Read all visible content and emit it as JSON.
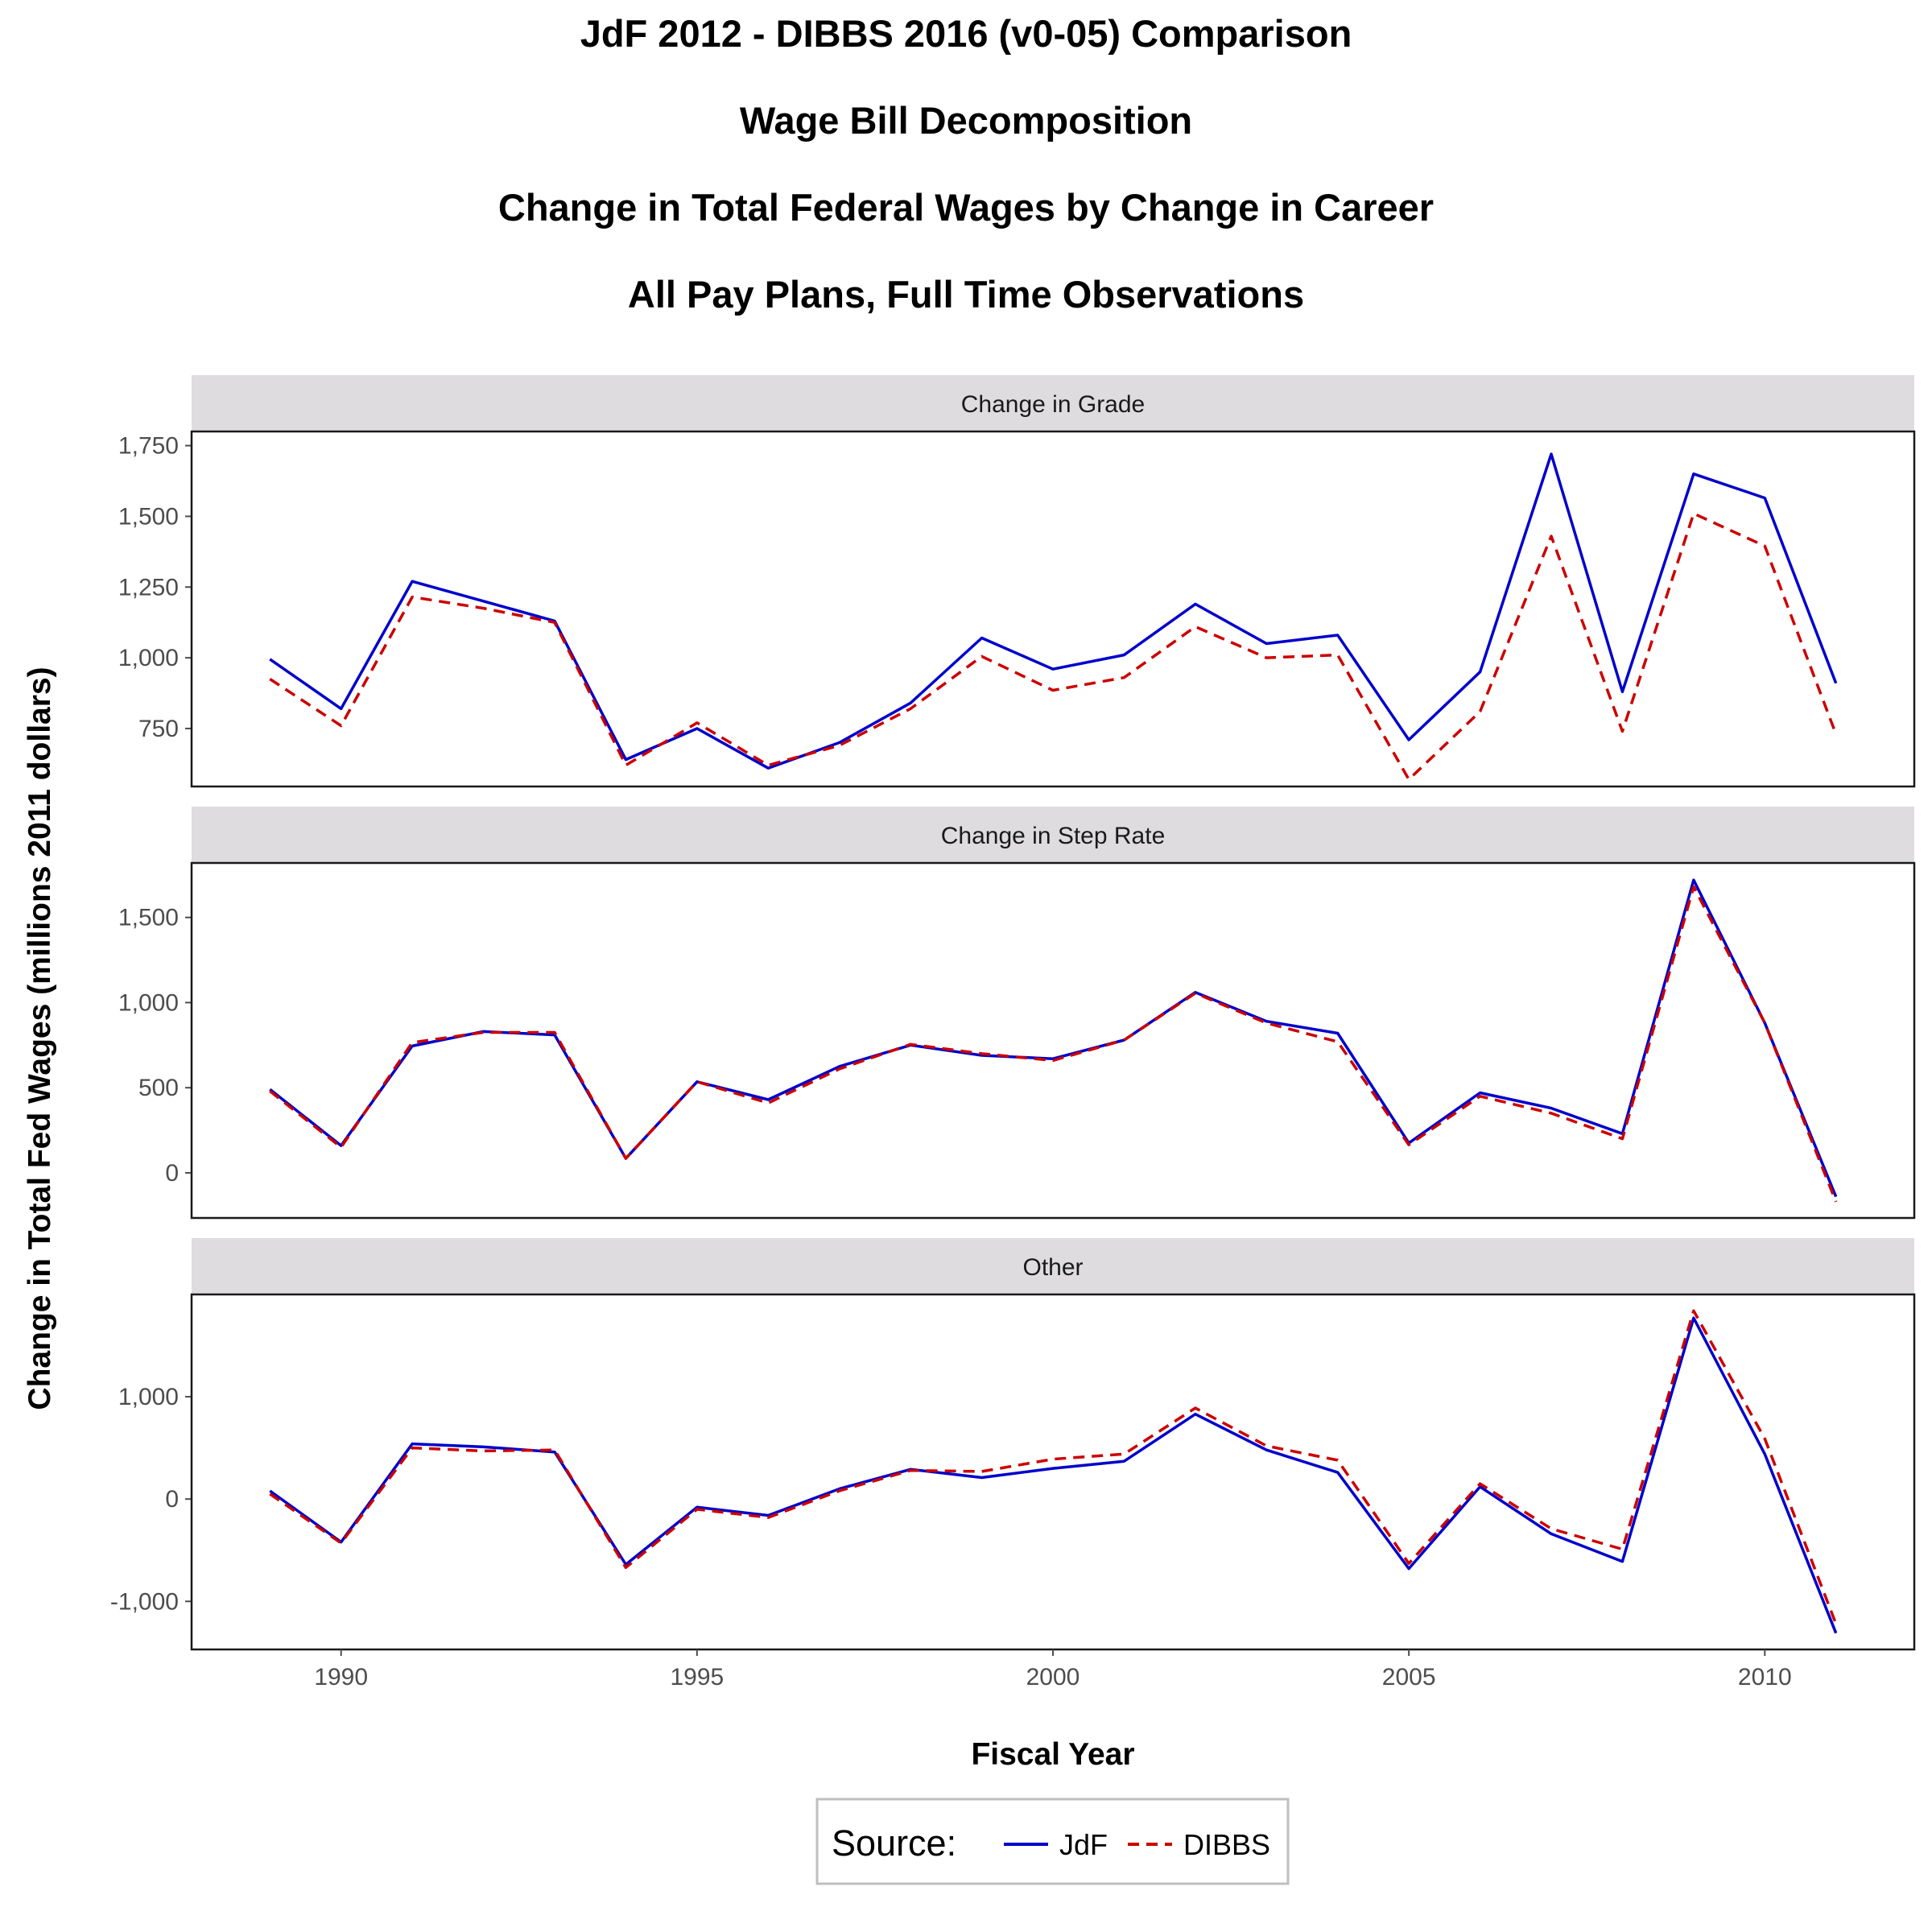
{
  "titles": [
    "JdF 2012 - DIBBS 2016 (v0-05) Comparison",
    "Wage Bill Decomposition",
    "Change in Total Federal Wages by Change in Career",
    "All Pay Plans, Full Time Observations"
  ],
  "colors": {
    "jdf": "#0000cc",
    "dibbs": "#cc0000",
    "strip": "#dedcdf",
    "tick": "#4d4d4d"
  },
  "chart_data": {
    "type": "line",
    "title": "JdF 2012 - DIBBS 2016 (v0-05) Comparison\nWage Bill Decomposition\nChange in Total Federal Wages by Change in Career\nAll Pay Plans, Full Time Observations",
    "xlabel": "Fiscal Year",
    "ylabel": "Change in Total Fed Wages (millions 2011 dollars)",
    "x": [
      1989,
      1990,
      1991,
      1992,
      1993,
      1994,
      1995,
      1996,
      1997,
      1998,
      1999,
      2000,
      2001,
      2002,
      2003,
      2004,
      2005,
      2006,
      2007,
      2008,
      2009,
      2010,
      2011
    ],
    "xlim": [
      1987.9,
      2012.1
    ],
    "xticks": [
      1990,
      1995,
      2000,
      2005,
      2010
    ],
    "legend": {
      "title": "Source:",
      "position": "bottom",
      "entries": [
        "JdF",
        "DIBBS"
      ]
    },
    "grid": false,
    "panels": [
      {
        "label": "Change in Grade",
        "ylim": [
          545,
          1800
        ],
        "yticks": [
          750,
          1000,
          1250,
          1500,
          1750
        ],
        "ytick_labels": [
          "750",
          "1,000",
          "1,250",
          "1,500",
          "1,750"
        ],
        "series": [
          {
            "name": "JdF",
            "style": "solid",
            "values": [
              995,
              820,
              1270,
              1200,
              1130,
              640,
              750,
              610,
              700,
              840,
              1070,
              960,
              1010,
              1190,
              1050,
              1080,
              710,
              950,
              1720,
              880,
              1650,
              1565,
              910
            ]
          },
          {
            "name": "DIBBS",
            "style": "dashed",
            "values": [
              925,
              760,
              1215,
              1175,
              1125,
              620,
              770,
              620,
              690,
              820,
              1005,
              885,
              930,
              1110,
              1000,
              1010,
              570,
              810,
              1430,
              740,
              1510,
              1395,
              730
            ]
          }
        ]
      },
      {
        "label": "Change in Step Rate",
        "ylim": [
          -265,
          1820
        ],
        "yticks": [
          0,
          500,
          1000,
          1500
        ],
        "ytick_labels": [
          "0",
          "500",
          "1,000",
          "1,500"
        ],
        "series": [
          {
            "name": "JdF",
            "style": "solid",
            "values": [
              490,
              160,
              745,
              830,
              810,
              85,
              535,
              430,
              625,
              750,
              690,
              670,
              780,
              1060,
              890,
              820,
              175,
              470,
              380,
              230,
              1720,
              880,
              -140
            ]
          },
          {
            "name": "DIBBS",
            "style": "dashed",
            "values": [
              480,
              150,
              765,
              825,
              825,
              85,
              535,
              410,
              610,
              755,
              700,
              660,
              780,
              1055,
              880,
              770,
              165,
              450,
              350,
              200,
              1680,
              880,
              -170
            ]
          }
        ]
      },
      {
        "label": "Other",
        "ylim": [
          -1470,
          2000
        ],
        "yticks": [
          -1000,
          0,
          1000
        ],
        "ytick_labels": [
          "-1,000",
          "0",
          "1,000"
        ],
        "series": [
          {
            "name": "JdF",
            "style": "solid",
            "values": [
              80,
              -420,
              540,
              510,
              460,
              -640,
              -80,
              -160,
              100,
              290,
              210,
              300,
              370,
              830,
              480,
              260,
              -680,
              120,
              -340,
              -610,
              1770,
              440,
              -1310
            ]
          },
          {
            "name": "DIBBS",
            "style": "dashed",
            "values": [
              50,
              -430,
              500,
              470,
              480,
              -670,
              -100,
              -180,
              80,
              280,
              270,
              390,
              440,
              890,
              520,
              380,
              -630,
              150,
              -290,
              -490,
              1840,
              590,
              -1220
            ]
          }
        ]
      }
    ]
  }
}
